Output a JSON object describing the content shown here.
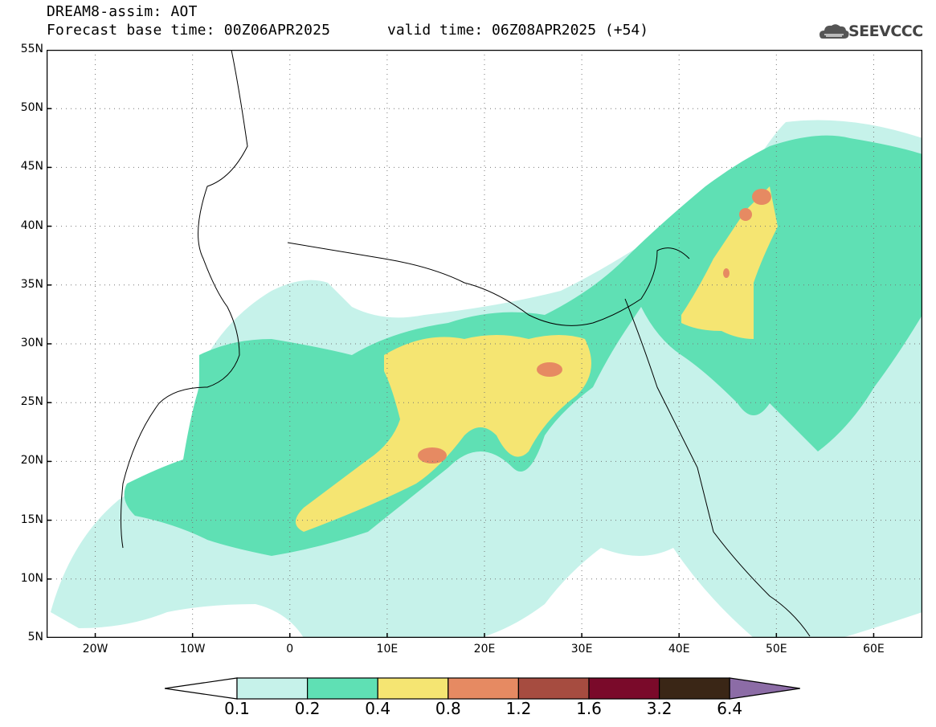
{
  "title": {
    "line1": "DREAM8-assim: AOT",
    "line2": "Forecast base time: 00Z06APR2025",
    "valid": "valid time: 06Z08APR2025 (+54)"
  },
  "logo": {
    "text": "SEEVCCC",
    "icon": "cloud-icon"
  },
  "map": {
    "lat_labels": [
      "55N",
      "50N",
      "45N",
      "40N",
      "35N",
      "30N",
      "25N",
      "20N",
      "15N",
      "10N",
      "5N"
    ],
    "lon_labels": [
      "20W",
      "10W",
      "0",
      "10E",
      "20E",
      "30E",
      "40E",
      "50E",
      "60E"
    ],
    "lat_range": [
      5,
      55
    ],
    "lon_range": [
      -25,
      65
    ],
    "grid": "dotted"
  },
  "colorbar": {
    "labels": [
      "0.1",
      "0.2",
      "0.4",
      "0.8",
      "1.2",
      "1.6",
      "3.2",
      "6.4"
    ],
    "colors": [
      "#c6f2ea",
      "#5fe0b4",
      "#f5e572",
      "#e68a62",
      "#a64c40",
      "#7a0a2a",
      "#3a2616",
      "#8c6ca6"
    ],
    "under_color": "#ffffff"
  }
}
